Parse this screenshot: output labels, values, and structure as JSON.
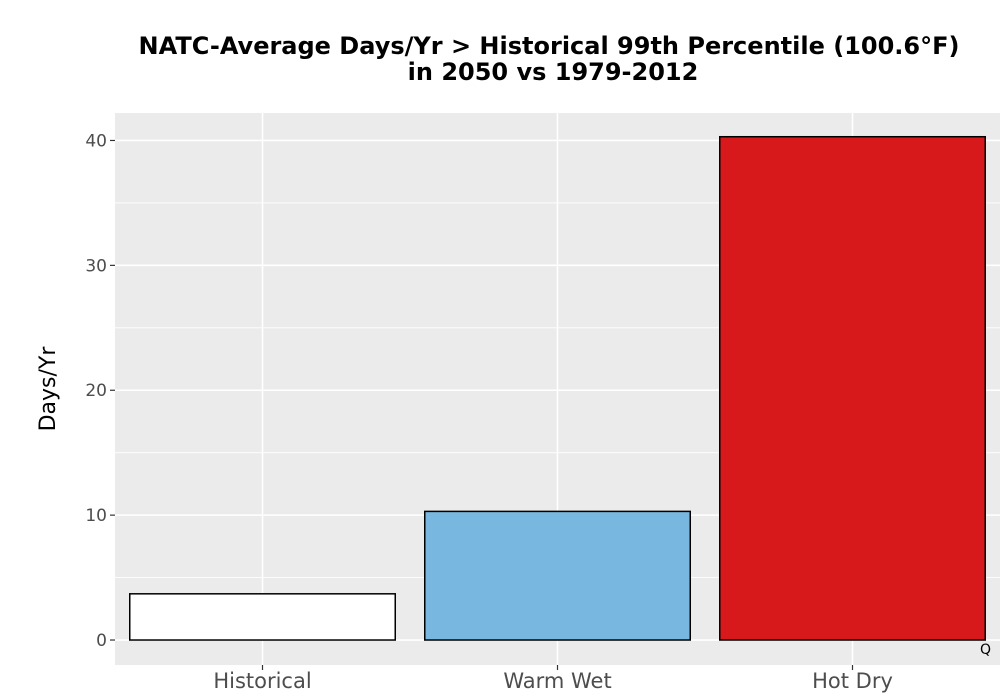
{
  "chart_data": {
    "type": "bar",
    "title_line1": "NATC-Average Days/Yr > Historical 99th Percentile (100.6°F)",
    "title_line2": "in 2050 vs 1979-2012",
    "xlabel": "",
    "ylabel": "Days/Yr",
    "categories": [
      "Historical",
      "Warm Wet",
      "Hot Dry"
    ],
    "values": [
      3.7,
      10.3,
      40.3
    ],
    "colors": [
      "#ffffff",
      "#78b7e0",
      "#d7191c"
    ],
    "ylim": [
      -2,
      42.2
    ],
    "yticks": [
      0,
      10,
      20,
      30,
      40
    ],
    "ytick_labels": [
      "0",
      "10",
      "20",
      "30",
      "40"
    ],
    "grid": true,
    "legend": "none",
    "panel_background": "#ebebeb",
    "bar_outline": "#000000"
  },
  "corner_mark": "Q"
}
